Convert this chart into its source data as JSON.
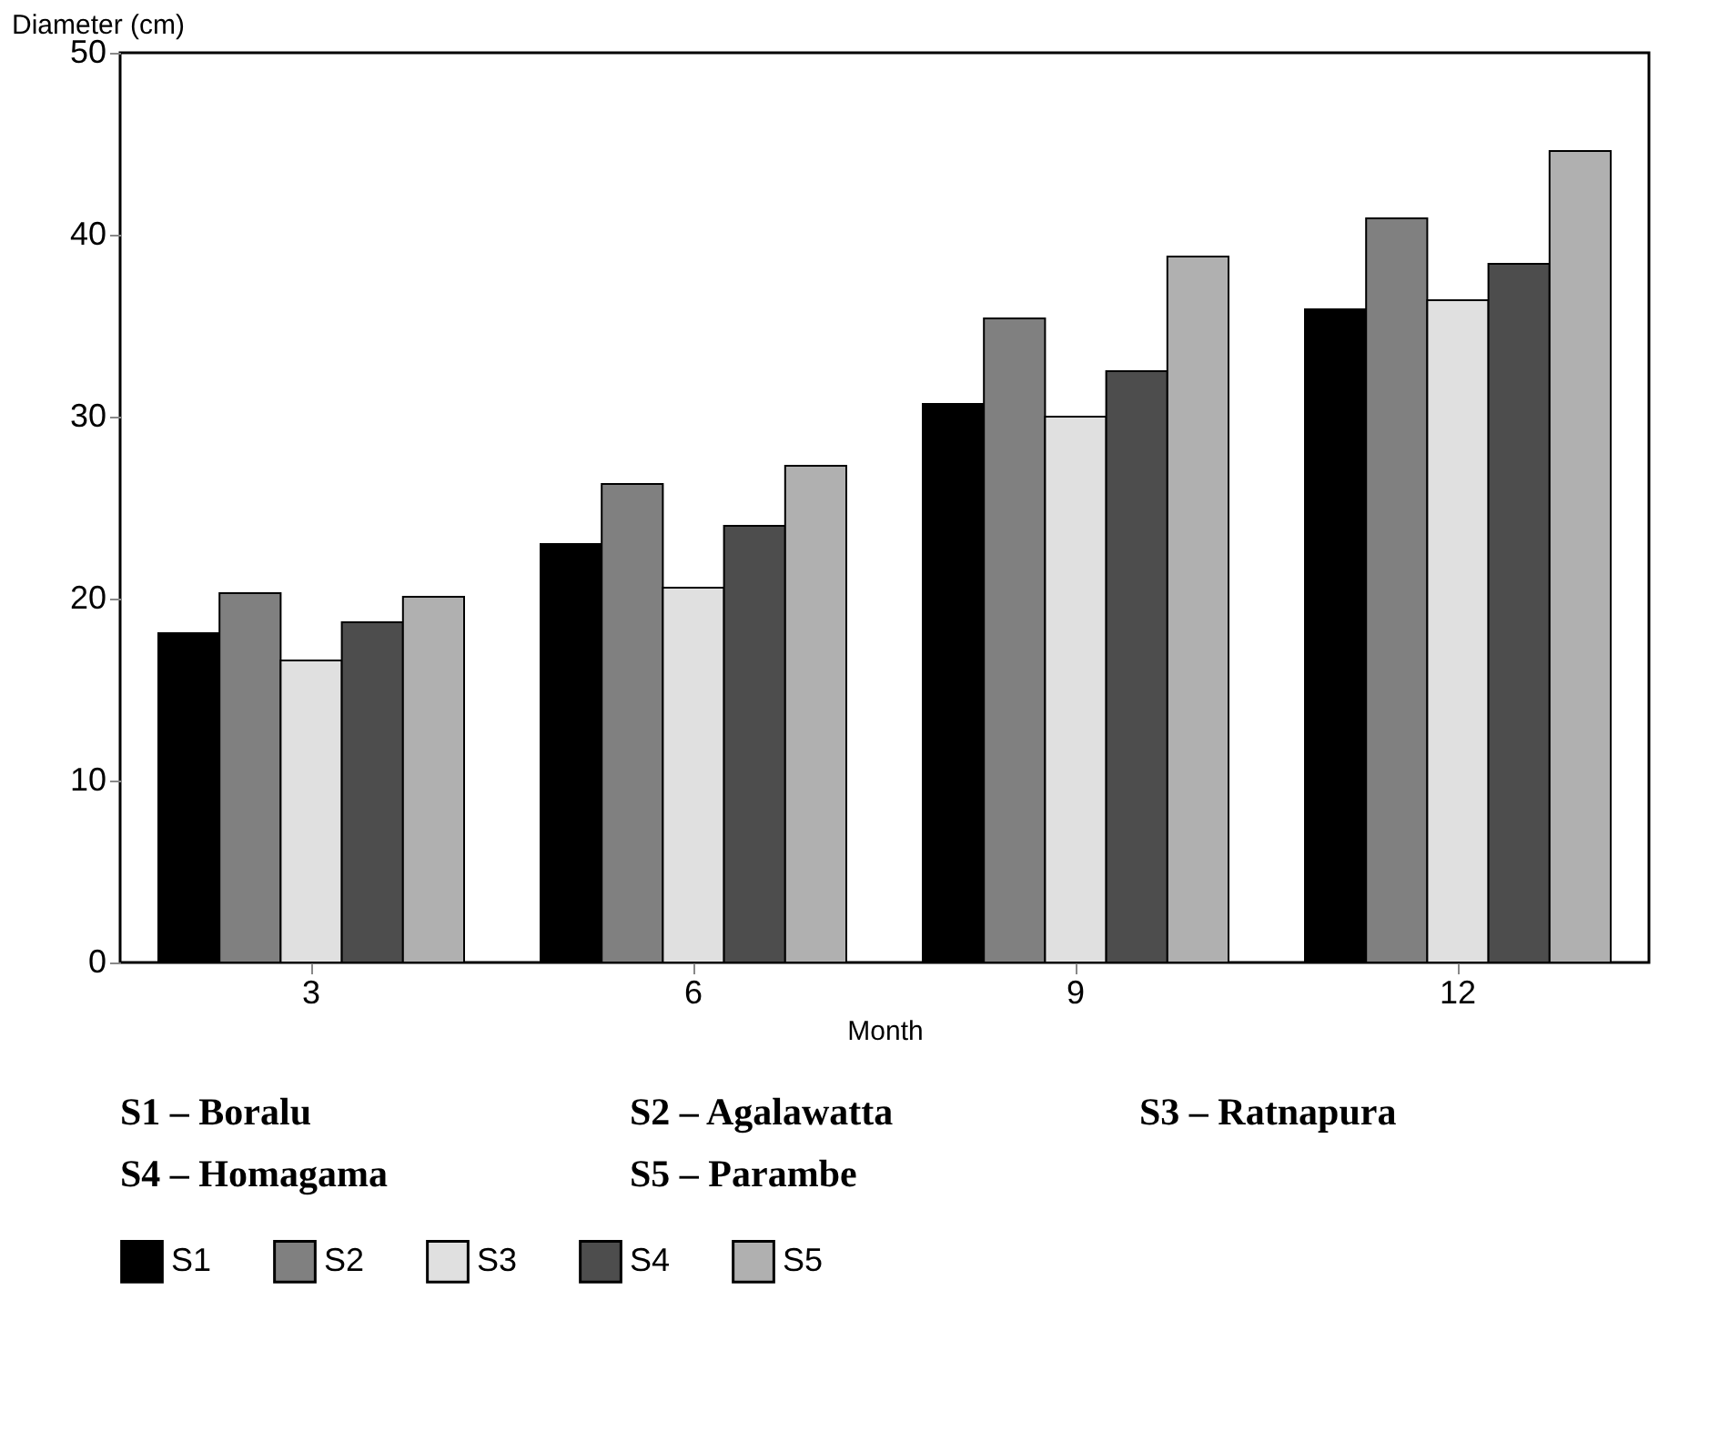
{
  "chart_data": {
    "type": "bar",
    "xlabel": "Month",
    "ylabel": "Diameter (cm)",
    "categories": [
      "3",
      "6",
      "9",
      "12"
    ],
    "series": [
      {
        "name": "S1",
        "color": "#000000",
        "values": [
          18.1,
          23.0,
          30.7,
          35.9
        ]
      },
      {
        "name": "S2",
        "color": "#808080",
        "values": [
          20.3,
          26.3,
          35.4,
          40.9
        ]
      },
      {
        "name": "S3",
        "color": "#e0e0e0",
        "values": [
          16.6,
          20.6,
          30.0,
          36.4
        ]
      },
      {
        "name": "S4",
        "color": "#4d4d4d",
        "values": [
          18.7,
          24.0,
          32.5,
          38.4
        ]
      },
      {
        "name": "S5",
        "color": "#b0b0b0",
        "values": [
          20.1,
          27.3,
          38.8,
          44.6
        ]
      }
    ],
    "ylim": [
      0,
      50
    ],
    "yticks": [
      0,
      10,
      20,
      30,
      40,
      50
    ],
    "grid": false,
    "legend": "bottom",
    "annotations": [
      "S1 – Boralu",
      "S2 – Agalawatta",
      "S3 – Ratnapura",
      "S4 – Homagama",
      "S5 – Parambe"
    ]
  }
}
